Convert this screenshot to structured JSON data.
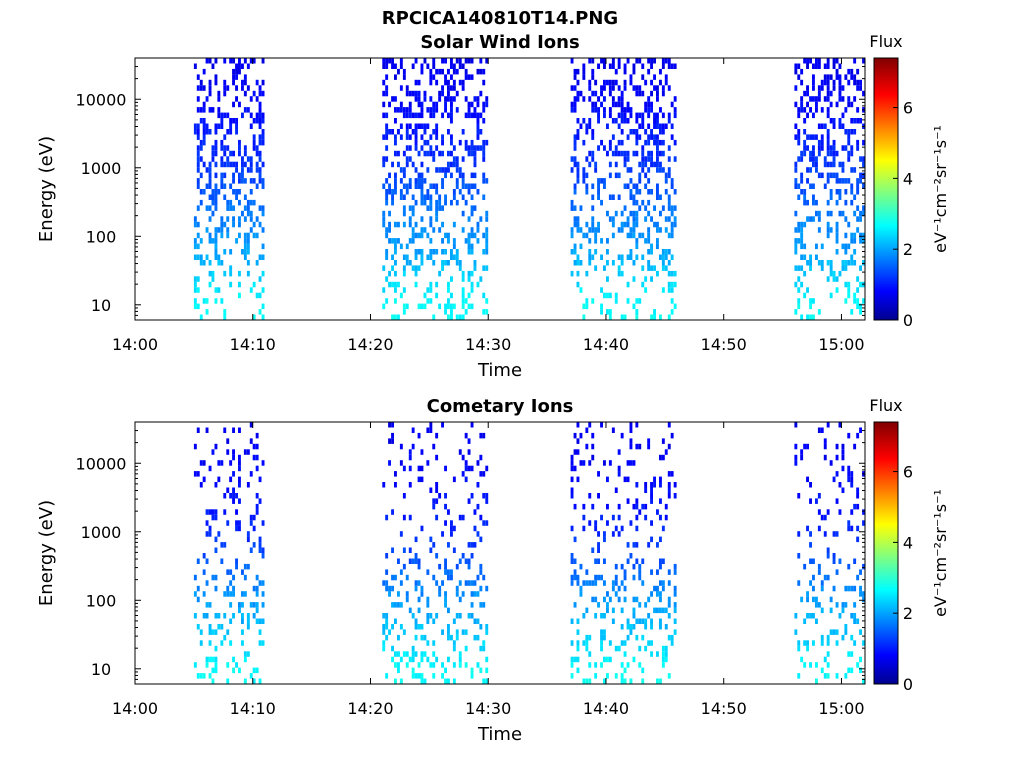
{
  "figure_title": "RPCICA140810T14.PNG",
  "chart_data": [
    {
      "type": "heatmap",
      "title": "Solar Wind Ions",
      "xlabel": "Time",
      "ylabel": "Energy (eV)",
      "xlim": [
        "14:00",
        "15:02"
      ],
      "x_ticks": [
        "14:00",
        "14:10",
        "14:20",
        "14:30",
        "14:40",
        "14:50",
        "15:00"
      ],
      "y_scale": "log",
      "ylim": [
        6,
        40000
      ],
      "y_ticks": [
        "10",
        "100",
        "1000",
        "10000"
      ],
      "colorbar": {
        "label": "Flux",
        "unit": "eV⁻¹cm⁻²sr⁻¹s⁻¹",
        "ticks": [
          "0",
          "2",
          "4",
          "6"
        ],
        "range": [
          0,
          7.4
        ],
        "colormap": "jet"
      },
      "active_intervals": [
        [
          "14:05",
          "14:11"
        ],
        [
          "14:21",
          "14:30"
        ],
        [
          "14:37",
          "14:46"
        ],
        [
          "14:56",
          "15:02"
        ]
      ],
      "energy_profile": [
        {
          "energy": 10,
          "flux": 2.8
        },
        {
          "energy": 30,
          "flux": 2.4
        },
        {
          "energy": 60,
          "flux": 2.1
        },
        {
          "energy": 150,
          "flux": 1.9
        },
        {
          "energy": 400,
          "flux": 1.6
        },
        {
          "energy": 1000,
          "flux": 1.3
        },
        {
          "energy": 3000,
          "flux": 1.1
        },
        {
          "energy": 10000,
          "flux": 0.9
        },
        {
          "energy": 30000,
          "flux": 0.8
        }
      ]
    },
    {
      "type": "heatmap",
      "title": "Cometary Ions",
      "xlabel": "Time",
      "ylabel": "Energy (eV)",
      "xlim": [
        "14:00",
        "15:02"
      ],
      "x_ticks": [
        "14:00",
        "14:10",
        "14:20",
        "14:30",
        "14:40",
        "14:50",
        "15:00"
      ],
      "y_scale": "log",
      "ylim": [
        6,
        40000
      ],
      "y_ticks": [
        "10",
        "100",
        "1000",
        "10000"
      ],
      "colorbar": {
        "label": "Flux",
        "unit": "eV⁻¹cm⁻²sr⁻¹s⁻¹",
        "ticks": [
          "0",
          "2",
          "4",
          "6"
        ],
        "range": [
          0,
          7.4
        ],
        "colormap": "jet"
      },
      "active_intervals": [
        [
          "14:05",
          "14:11"
        ],
        [
          "14:21",
          "14:30"
        ],
        [
          "14:37",
          "14:46"
        ],
        [
          "14:56",
          "15:02"
        ]
      ],
      "energy_profile": [
        {
          "energy": 10,
          "flux": 2.8
        },
        {
          "energy": 30,
          "flux": 2.4
        },
        {
          "energy": 60,
          "flux": 2.2
        },
        {
          "energy": 150,
          "flux": 1.9
        },
        {
          "energy": 400,
          "flux": 1.5
        },
        {
          "energy": 1000,
          "flux": 1.2
        },
        {
          "energy": 3000,
          "flux": 1.0
        },
        {
          "energy": 10000,
          "flux": 0.9
        },
        {
          "energy": 30000,
          "flux": 0.8
        }
      ]
    }
  ]
}
